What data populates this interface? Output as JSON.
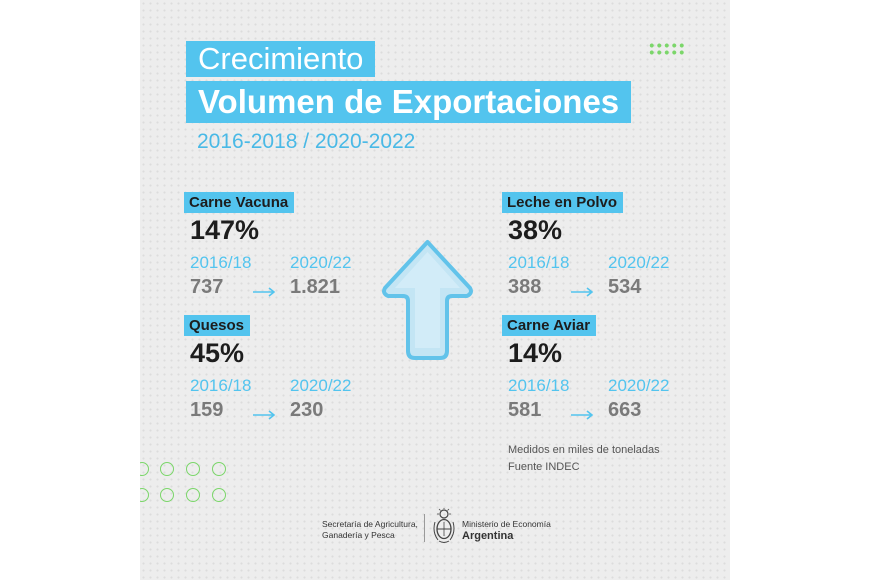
{
  "header": {
    "title_line1": "Crecimiento",
    "title_line2": "Volumen de Exportaciones",
    "periods": "2016-2018 / 2020-2022"
  },
  "products": [
    {
      "name": "Carne Vacuna",
      "growth": "147%",
      "year_from": "2016/18",
      "year_to": "2020/22",
      "value_from": "737",
      "value_to": "1.821"
    },
    {
      "name": "Quesos",
      "growth": "45%",
      "year_from": "2016/18",
      "year_to": "2020/22",
      "value_from": "159",
      "value_to": "230"
    },
    {
      "name": "Leche en Polvo",
      "growth": "38%",
      "year_from": "2016/18",
      "year_to": "2020/22",
      "value_from": "388",
      "value_to": "534"
    },
    {
      "name": "Carne Aviar",
      "growth": "14%",
      "year_from": "2016/18",
      "year_to": "2020/22",
      "value_from": "581",
      "value_to": "663"
    }
  ],
  "footer": {
    "note": "Medidos en miles de toneladas",
    "source": "Fuente INDEC",
    "secretaria_line1": "Secretaría de Agricultura,",
    "secretaria_line2": "Ganadería y Pesca",
    "ministerio_line1": "Ministerio de Economía",
    "ministerio_line2": "Argentina"
  },
  "colors": {
    "accent_blue": "#53c4ee",
    "accent_green": "#7bd66a",
    "background": "#ededed",
    "arrow_fill": "#bfe3f3"
  },
  "icons": [
    "arrow-up-icon",
    "arrow-right-icon",
    "argentina-coat-of-arms-icon"
  ]
}
